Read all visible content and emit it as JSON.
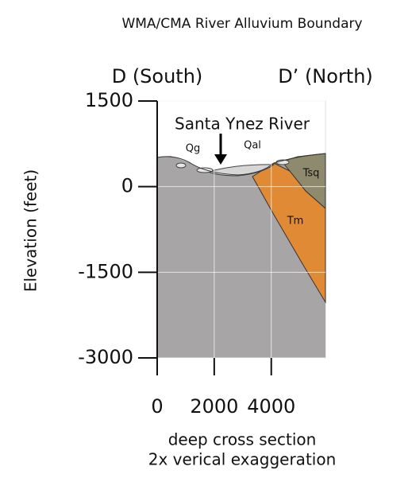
{
  "title": "WMA/CMA River Alluvium Boundary",
  "section": {
    "left_end": "D (South)",
    "right_end": "D’ (North)",
    "river": "Santa Ynez River",
    "units": [
      "Qg",
      "Qal",
      "Tsq",
      "Tm"
    ]
  },
  "y_axis": {
    "label": "Elevation (feet)",
    "ylim": [
      -3000,
      1500
    ],
    "ticks": [
      1500,
      0,
      -1500,
      -3000
    ]
  },
  "x_axis": {
    "xlim": [
      0,
      5900
    ],
    "ticks": [
      0,
      2000,
      4000
    ]
  },
  "caption": [
    "deep cross section",
    "2x verical exaggeration"
  ]
}
